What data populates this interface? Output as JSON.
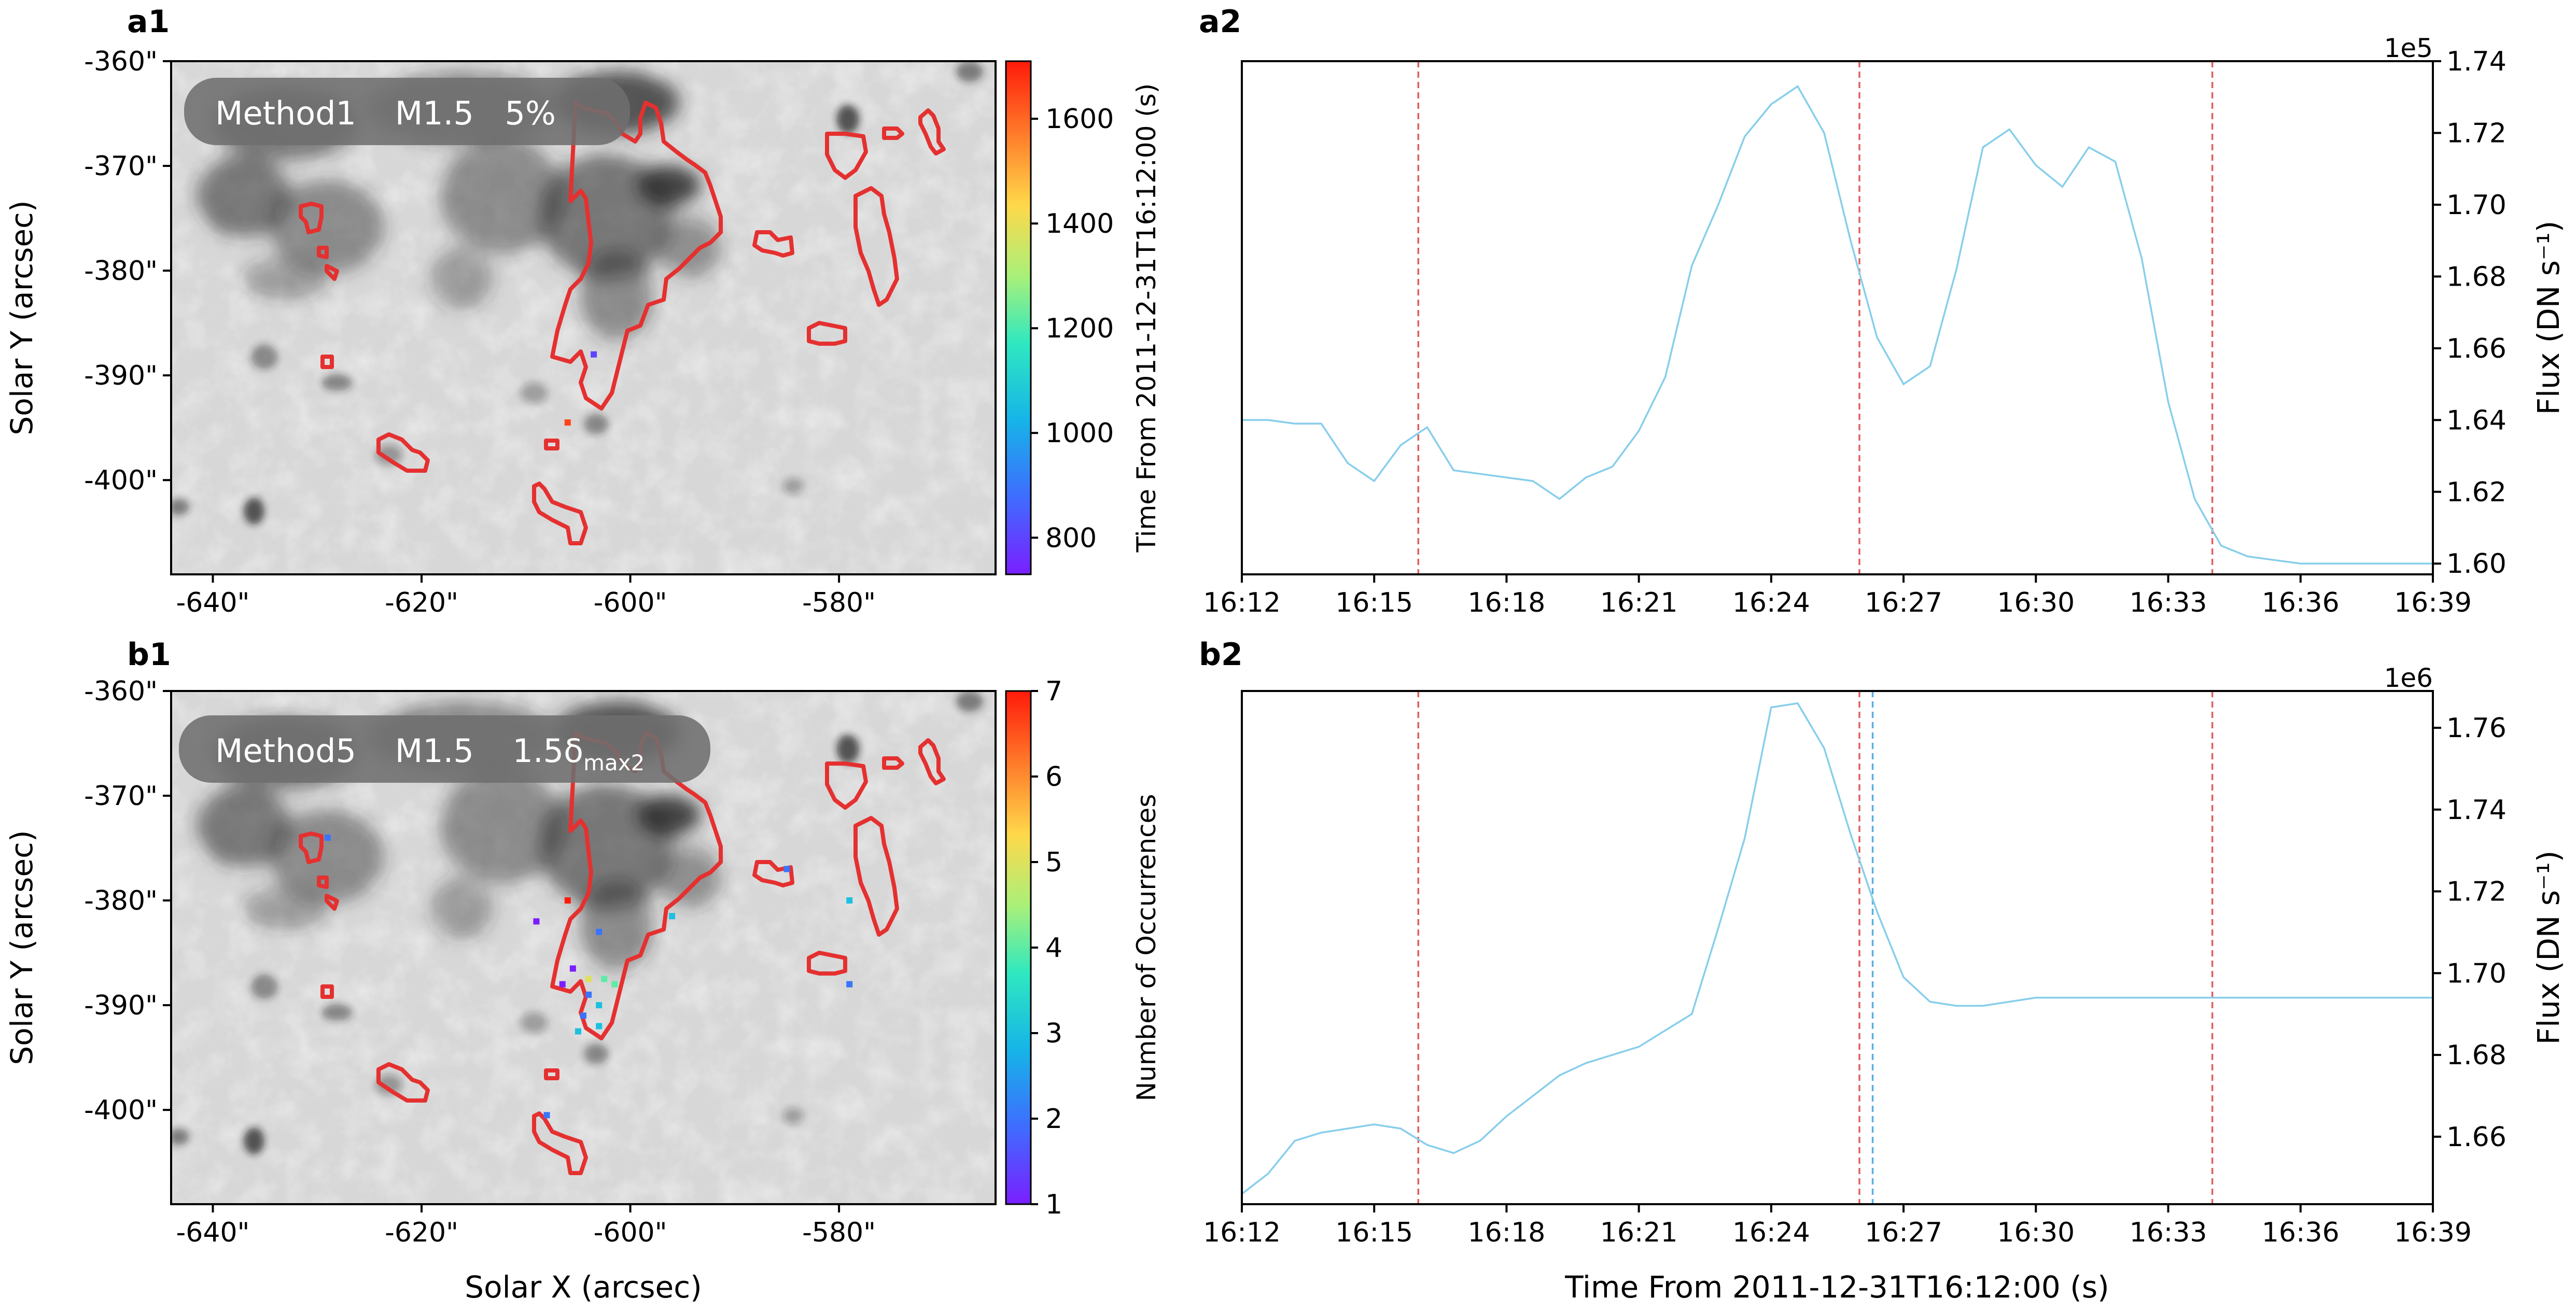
{
  "colors": {
    "curve": "#87ceeb",
    "vline_red": "#e06060",
    "vline_blue": "#5aaee0",
    "contour": "#e53030"
  },
  "shared": {
    "xlabel_left": "Solar X (arcsec)",
    "ylabel_left": "Solar Y (arcsec)",
    "xlabel_right": "Time From 2011-12-31T16:12:00 (s)"
  },
  "chart_data": [
    {
      "panel": "a1",
      "type": "heatmap",
      "panel_label": "a1",
      "badge": {
        "method": "Method1",
        "flare": "M1.5",
        "threshold": "5%"
      },
      "x_ticks": [
        "-640\"",
        "-620\"",
        "-600\"",
        "-580\""
      ],
      "x_tick_values": [
        -640,
        -620,
        -600,
        -580
      ],
      "y_ticks": [
        "-360\"",
        "-370\"",
        "-380\"",
        "-390\"",
        "-400\""
      ],
      "y_tick_values": [
        -360,
        -370,
        -380,
        -390,
        -400
      ],
      "xlim": [
        -644,
        -565
      ],
      "ylim": [
        -409,
        -360
      ],
      "colorbar": {
        "ticks": [
          "800",
          "1000",
          "1200",
          "1400",
          "1600"
        ],
        "tick_values": [
          800,
          1000,
          1200,
          1400,
          1600
        ],
        "range": [
          730,
          1710
        ]
      },
      "points": [
        {
          "x": -603.5,
          "y": -388,
          "value": 800
        },
        {
          "x": -606,
          "y": -394.5,
          "value": 1650
        }
      ]
    },
    {
      "panel": "a2",
      "type": "line",
      "panel_label": "a2",
      "ylabel_left": "Time From 2011-12-31T16:12:00 (s)",
      "ylabel_right": "Flux (DN s⁻¹)",
      "offset_text": "1e5",
      "x_ticks": [
        "16:12",
        "16:15",
        "16:18",
        "16:21",
        "16:24",
        "16:27",
        "16:30",
        "16:33",
        "16:36",
        "16:39"
      ],
      "x_tick_values": [
        0,
        3,
        6,
        9,
        12,
        15,
        18,
        21,
        24,
        27
      ],
      "y_ticks": [
        "1.60",
        "1.62",
        "1.64",
        "1.66",
        "1.68",
        "1.70",
        "1.72",
        "1.74"
      ],
      "y_tick_values": [
        1.6,
        1.62,
        1.64,
        1.66,
        1.68,
        1.7,
        1.72,
        1.74
      ],
      "xlim": [
        0,
        27
      ],
      "ylim": [
        1.597,
        1.74
      ],
      "x": [
        0,
        0.6,
        1.2,
        1.8,
        2.4,
        3.0,
        3.6,
        4.2,
        4.8,
        5.4,
        6.0,
        6.6,
        7.2,
        7.8,
        8.4,
        9.0,
        9.6,
        10.2,
        10.8,
        11.4,
        12.0,
        12.6,
        13.2,
        13.8,
        14.4,
        15.0,
        15.6,
        16.2,
        16.8,
        17.4,
        18.0,
        18.6,
        19.2,
        19.8,
        20.4,
        21.0,
        21.6,
        22.2,
        22.8,
        23.4,
        24.0,
        24.6,
        25.2,
        25.8,
        26.4,
        27.0
      ],
      "y": [
        1.64,
        1.64,
        1.639,
        1.639,
        1.628,
        1.623,
        1.633,
        1.638,
        1.626,
        1.625,
        1.624,
        1.623,
        1.618,
        1.624,
        1.627,
        1.637,
        1.652,
        1.683,
        1.7,
        1.719,
        1.728,
        1.733,
        1.72,
        1.69,
        1.663,
        1.65,
        1.655,
        1.682,
        1.716,
        1.721,
        1.711,
        1.705,
        1.716,
        1.712,
        1.685,
        1.645,
        1.618,
        1.605,
        1.602,
        1.601,
        1.6,
        1.6,
        1.6,
        1.6,
        1.6,
        1.6
      ],
      "vlines_red": [
        4,
        14,
        22
      ],
      "vlines_blue": []
    },
    {
      "panel": "b1",
      "type": "heatmap",
      "panel_label": "b1",
      "badge": {
        "method": "Method5",
        "flare": "M1.5",
        "threshold": "1.5δ",
        "threshold_sub": "max2"
      },
      "x_ticks": [
        "-640\"",
        "-620\"",
        "-600\"",
        "-580\""
      ],
      "x_tick_values": [
        -640,
        -620,
        -600,
        -580
      ],
      "y_ticks": [
        "-360\"",
        "-370\"",
        "-380\"",
        "-390\"",
        "-400\""
      ],
      "y_tick_values": [
        -360,
        -370,
        -380,
        -390,
        -400
      ],
      "xlim": [
        -644,
        -565
      ],
      "ylim": [
        -409,
        -360
      ],
      "colorbar": {
        "ticks": [
          "1",
          "2",
          "3",
          "4",
          "5",
          "6",
          "7"
        ],
        "tick_values": [
          1,
          2,
          3,
          4,
          5,
          6,
          7
        ],
        "range": [
          1,
          7
        ]
      },
      "points": [
        {
          "x": -629,
          "y": -374,
          "value": 2
        },
        {
          "x": -606,
          "y": -380,
          "value": 7
        },
        {
          "x": -609,
          "y": -382,
          "value": 1
        },
        {
          "x": -603,
          "y": -383,
          "value": 2
        },
        {
          "x": -596,
          "y": -381.5,
          "value": 3
        },
        {
          "x": -585,
          "y": -377,
          "value": 2
        },
        {
          "x": -579,
          "y": -380,
          "value": 3
        },
        {
          "x": -579,
          "y": -388,
          "value": 2
        },
        {
          "x": -605.5,
          "y": -386.5,
          "value": 1
        },
        {
          "x": -604,
          "y": -387.5,
          "value": 5
        },
        {
          "x": -602.5,
          "y": -387.5,
          "value": 4
        },
        {
          "x": -601.5,
          "y": -388,
          "value": 4
        },
        {
          "x": -604,
          "y": -389,
          "value": 2
        },
        {
          "x": -603,
          "y": -390,
          "value": 3
        },
        {
          "x": -604.5,
          "y": -391,
          "value": 2
        },
        {
          "x": -603,
          "y": -392,
          "value": 3
        },
        {
          "x": -605,
          "y": -392.5,
          "value": 3
        },
        {
          "x": -608,
          "y": -400.5,
          "value": 2
        },
        {
          "x": -606.5,
          "y": -388,
          "value": 1
        }
      ]
    },
    {
      "panel": "b2",
      "type": "line",
      "panel_label": "b2",
      "ylabel_left": "Number of Occurrences",
      "ylabel_right": "Flux (DN s⁻¹)",
      "offset_text": "1e6",
      "x_ticks": [
        "16:12",
        "16:15",
        "16:18",
        "16:21",
        "16:24",
        "16:27",
        "16:30",
        "16:33",
        "16:36",
        "16:39"
      ],
      "x_tick_values": [
        0,
        3,
        6,
        9,
        12,
        15,
        18,
        21,
        24,
        27
      ],
      "y_ticks": [
        "1.66",
        "1.68",
        "1.70",
        "1.72",
        "1.74",
        "1.76"
      ],
      "y_tick_values": [
        1.66,
        1.68,
        1.7,
        1.72,
        1.74,
        1.76
      ],
      "xlim": [
        0,
        27
      ],
      "ylim": [
        1.6435,
        1.769
      ],
      "x": [
        0,
        0.6,
        1.2,
        1.8,
        2.4,
        3.0,
        3.6,
        4.2,
        4.8,
        5.4,
        6.0,
        6.6,
        7.2,
        7.8,
        8.4,
        9.0,
        9.6,
        10.2,
        10.8,
        11.4,
        12.0,
        12.6,
        13.2,
        13.8,
        14.4,
        15.0,
        15.6,
        16.2,
        16.8,
        17.4,
        18.0,
        18.6,
        19.2,
        19.8,
        20.4,
        21.0,
        21.6,
        22.2,
        22.8,
        23.4,
        24.0,
        24.6,
        25.2,
        25.8,
        26.4,
        27.0
      ],
      "y": [
        1.646,
        1.651,
        1.659,
        1.661,
        1.662,
        1.663,
        1.662,
        1.658,
        1.656,
        1.659,
        1.665,
        1.67,
        1.675,
        1.678,
        1.68,
        1.682,
        1.686,
        1.69,
        1.711,
        1.733,
        1.765,
        1.766,
        1.755,
        1.734,
        1.715,
        1.699,
        1.693,
        1.692,
        1.692,
        1.693,
        1.694,
        1.694,
        1.694,
        1.694,
        1.694,
        1.694,
        1.694,
        1.694,
        1.694,
        1.694,
        1.694,
        1.694,
        1.694,
        1.694,
        1.694,
        1.694
      ],
      "vlines_red": [
        4,
        14,
        22
      ],
      "vlines_blue": [
        14.3
      ]
    }
  ]
}
